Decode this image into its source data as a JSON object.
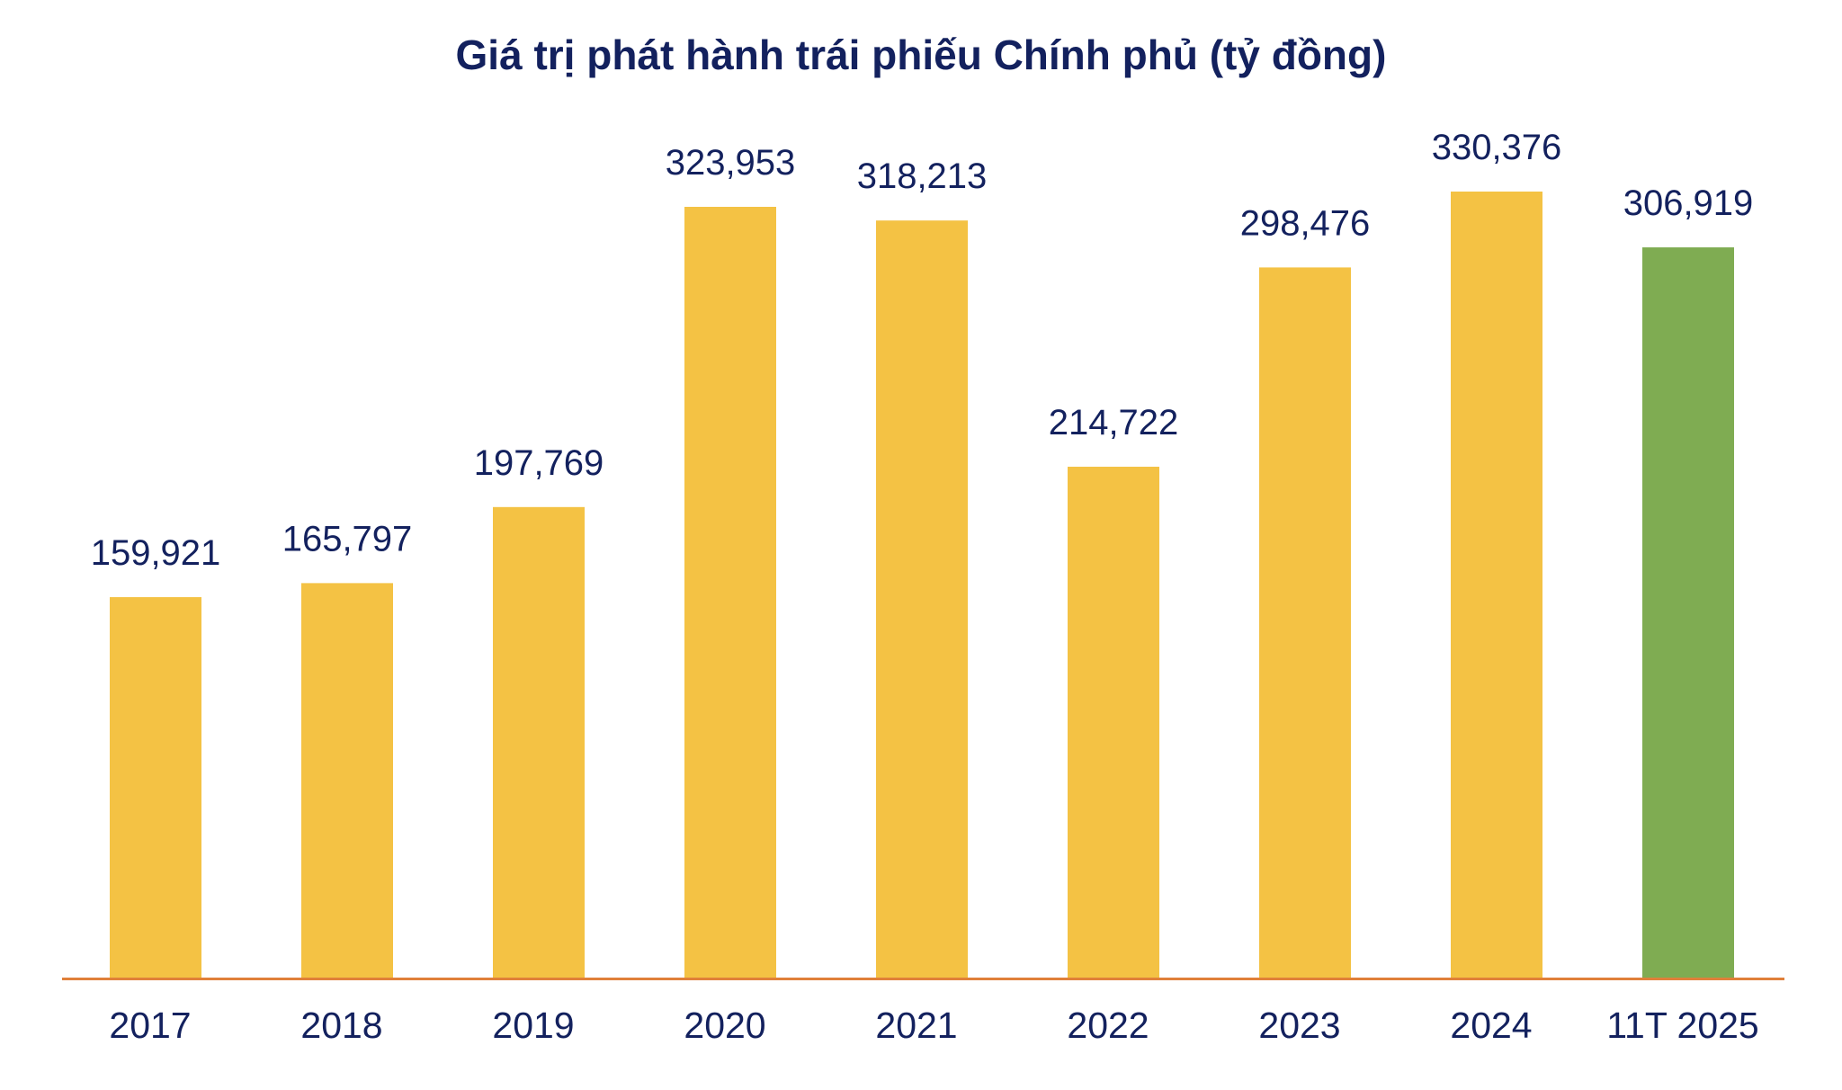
{
  "chart_data": {
    "type": "bar",
    "title": "Giá trị phát hành trái phiếu Chính phủ (tỷ đồng)",
    "xlabel": "",
    "ylabel": "",
    "categories": [
      "2017",
      "2018",
      "2019",
      "2020",
      "2021",
      "2022",
      "2023",
      "2024",
      "11T 2025"
    ],
    "values": [
      159921,
      165797,
      197769,
      323953,
      318213,
      214722,
      298476,
      330376,
      306919
    ],
    "data_labels": [
      "159,921",
      "165,797",
      "197,769",
      "323,953",
      "318,213",
      "214,722",
      "298,476",
      "330,376",
      "306,919"
    ],
    "ylim": [
      0,
      330376
    ],
    "grid": false,
    "legend": "none",
    "colors": {
      "bar": "#F4C244",
      "highlight_bar": "#7FAC52",
      "highlight_category": "11T 2025",
      "axis": "#E0803A",
      "text": "#13215E"
    }
  }
}
